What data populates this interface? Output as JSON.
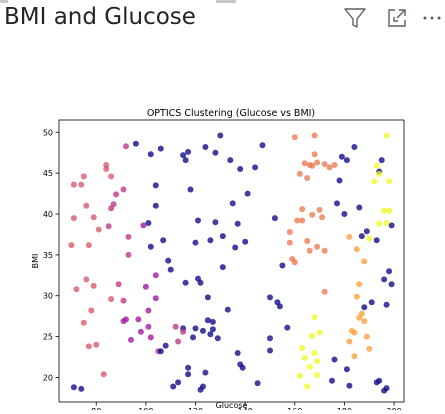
{
  "visual": {
    "title": "BMI and Glucose",
    "filter_icon": "filter-icon",
    "focus_icon": "focus-mode-icon",
    "more_icon": "more-options-icon"
  },
  "colors": {
    "title_text": "#252423",
    "icon_stroke": "#605e5c",
    "axes": "#000000",
    "cluster_palette": [
      "#0d0887",
      "#46039f",
      "#7201a8",
      "#9c179e",
      "#bd3786",
      "#d8576b",
      "#ed7953",
      "#fb9f3a",
      "#fdca26",
      "#f0f921"
    ]
  },
  "chart_data": {
    "type": "scatter",
    "title": "OPTICS Clustering (Glucose vs BMI)",
    "xlabel": "Glucose",
    "ylabel": "BMI",
    "xlim": [
      65,
      204
    ],
    "ylim": [
      17,
      51.5
    ],
    "xticks": [
      "80",
      "100",
      "120",
      "140",
      "160",
      "180",
      "200"
    ],
    "xtick_values": [
      80,
      100,
      120,
      140,
      160,
      180,
      200
    ],
    "yticks": [
      "20",
      "25",
      "30",
      "35",
      "40",
      "45",
      "50"
    ],
    "ytick_values": [
      20,
      25,
      30,
      35,
      40,
      45,
      50
    ],
    "grid": false,
    "colormap": "plasma",
    "points": [
      [
        71,
        18.8,
        0.01
      ],
      [
        74,
        18.6,
        0.01
      ],
      [
        70,
        36.2,
        0.52
      ],
      [
        71,
        39.5,
        0.52
      ],
      [
        71,
        43.6,
        0.52
      ],
      [
        72,
        30.8,
        0.55
      ],
      [
        74,
        43.6,
        0.52
      ],
      [
        75,
        44.6,
        0.5
      ],
      [
        75,
        26.7,
        0.55
      ],
      [
        76,
        32.0,
        0.55
      ],
      [
        76,
        41.0,
        0.52
      ],
      [
        77,
        36.2,
        0.52
      ],
      [
        77,
        23.8,
        0.55
      ],
      [
        78,
        28.2,
        0.55
      ],
      [
        79,
        31.2,
        0.55
      ],
      [
        79,
        39.6,
        0.52
      ],
      [
        80,
        24.0,
        0.55
      ],
      [
        81,
        38.1,
        0.5
      ],
      [
        83,
        20.4,
        0.55
      ],
      [
        84,
        45.5,
        0.5
      ],
      [
        84,
        46.0,
        0.5
      ],
      [
        85,
        38.5,
        0.45
      ],
      [
        86,
        44.6,
        0.5
      ],
      [
        86,
        29.6,
        0.5
      ],
      [
        86,
        40.7,
        0.45
      ],
      [
        87,
        41.2,
        0.45
      ],
      [
        88,
        42.4,
        0.45
      ],
      [
        89,
        31.4,
        0.45
      ],
      [
        91,
        43.0,
        0.4
      ],
      [
        91,
        26.9,
        0.38
      ],
      [
        91,
        29.4,
        0.4
      ],
      [
        92,
        27.1,
        0.38
      ],
      [
        93,
        35.0,
        0.4
      ],
      [
        93,
        37.2,
        0.4
      ],
      [
        94,
        24.6,
        0.35
      ],
      [
        97,
        27.1,
        0.35
      ],
      [
        98,
        25.6,
        0.38
      ],
      [
        99,
        38.6,
        0.35
      ],
      [
        100,
        31.1,
        0.35
      ],
      [
        101,
        26.2,
        0.38
      ],
      [
        101,
        28.2,
        0.38
      ],
      [
        102,
        24.9,
        0.38
      ],
      [
        104,
        29.7,
        0.38
      ],
      [
        105,
        23.2,
        0.4
      ],
      [
        104,
        32.5,
        0.38
      ],
      [
        92,
        48.3,
        0.45
      ],
      [
        96,
        48.6,
        0.05
      ],
      [
        101,
        38.9,
        0.05
      ],
      [
        102,
        47.3,
        0.05
      ],
      [
        102,
        36.0,
        0.05
      ],
      [
        104,
        43.5,
        0.05
      ],
      [
        104,
        41.0,
        0.05
      ],
      [
        106,
        48.0,
        0.05
      ],
      [
        106,
        23.2,
        0.05
      ],
      [
        107,
        36.8,
        0.05
      ],
      [
        108,
        23.9,
        0.05
      ],
      [
        109,
        34.3,
        0.05
      ],
      [
        110,
        33.2,
        0.05
      ],
      [
        111,
        18.9,
        0.05
      ],
      [
        113,
        19.4,
        0.05
      ],
      [
        115,
        47.2,
        0.05
      ],
      [
        115,
        26.0,
        0.05
      ],
      [
        116,
        46.6,
        0.05
      ],
      [
        116,
        31.6,
        0.05
      ],
      [
        117,
        47.6,
        0.05
      ],
      [
        117,
        21.2,
        0.05
      ],
      [
        117,
        20.4,
        0.05
      ],
      [
        118,
        43.0,
        0.05
      ],
      [
        119,
        24.9,
        0.05
      ],
      [
        120,
        26.0,
        0.05
      ],
      [
        120,
        36.5,
        0.05
      ],
      [
        121,
        32.1,
        0.05
      ],
      [
        121,
        39.2,
        0.05
      ],
      [
        122,
        31.6,
        0.05
      ],
      [
        122,
        18.5,
        0.05
      ],
      [
        123,
        25.7,
        0.05
      ],
      [
        123,
        18.9,
        0.05
      ],
      [
        124,
        48.2,
        0.05
      ],
      [
        124,
        20.6,
        0.05
      ],
      [
        125,
        27.0,
        0.05
      ],
      [
        125,
        29.8,
        0.05
      ],
      [
        126,
        25.3,
        0.05
      ],
      [
        126,
        36.8,
        0.05
      ],
      [
        127,
        26.8,
        0.05
      ],
      [
        127,
        25.9,
        0.05
      ],
      [
        128,
        39.0,
        0.05
      ],
      [
        128,
        47.5,
        0.05
      ],
      [
        129,
        24.8,
        0.05
      ],
      [
        130,
        49.6,
        0.05
      ],
      [
        131,
        33.5,
        0.05
      ],
      [
        131,
        37.3,
        0.05
      ],
      [
        133,
        28.3,
        0.05
      ],
      [
        134,
        46.6,
        0.05
      ],
      [
        135,
        41.3,
        0.05
      ],
      [
        136,
        35.9,
        0.05
      ],
      [
        137,
        23.0,
        0.05
      ],
      [
        137,
        38.8,
        0.05
      ],
      [
        138,
        21.6,
        0.05
      ],
      [
        138,
        45.5,
        0.05
      ],
      [
        139,
        21.2,
        0.05
      ],
      [
        140,
        36.6,
        0.05
      ],
      [
        141,
        42.5,
        0.05
      ],
      [
        144,
        45.7,
        0.05
      ],
      [
        145,
        19.3,
        0.05
      ],
      [
        147,
        48.4,
        0.05
      ],
      [
        150,
        23.3,
        0.05
      ],
      [
        150,
        29.8,
        0.05
      ],
      [
        150,
        24.8,
        0.05
      ],
      [
        152,
        39.5,
        0.05
      ],
      [
        153,
        29.2,
        0.05
      ],
      [
        154,
        28.7,
        0.05
      ],
      [
        155,
        33.7,
        0.05
      ],
      [
        157,
        26.1,
        0.05
      ],
      [
        112,
        26.2,
        0.4
      ],
      [
        113,
        24.4,
        0.4
      ],
      [
        115,
        25.6,
        0.4
      ],
      [
        158,
        37.8,
        0.7
      ],
      [
        158,
        36.5,
        0.7
      ],
      [
        159,
        34.5,
        0.7
      ],
      [
        160,
        34.1,
        0.7
      ],
      [
        160,
        49.4,
        0.72
      ],
      [
        161,
        39.2,
        0.7
      ],
      [
        162,
        44.9,
        0.72
      ],
      [
        163,
        39.2,
        0.7
      ],
      [
        163,
        40.6,
        0.7
      ],
      [
        164,
        46.2,
        0.72
      ],
      [
        165,
        44.4,
        0.72
      ],
      [
        165,
        36.7,
        0.7
      ],
      [
        166,
        35.5,
        0.72
      ],
      [
        166,
        46.0,
        0.72
      ],
      [
        167,
        39.9,
        0.72
      ],
      [
        167,
        45.9,
        0.72
      ],
      [
        168,
        49.6,
        0.72
      ],
      [
        168,
        47.3,
        0.72
      ],
      [
        169,
        46.3,
        0.72
      ],
      [
        169,
        36.0,
        0.72
      ],
      [
        170,
        40.5,
        0.72
      ],
      [
        171,
        39.6,
        0.72
      ],
      [
        172,
        35.5,
        0.72
      ],
      [
        172,
        46.1,
        0.72
      ],
      [
        172,
        30.5,
        0.72
      ],
      [
        174,
        45.7,
        0.72
      ],
      [
        176,
        46.0,
        0.72
      ],
      [
        182,
        37.2,
        0.8
      ],
      [
        185,
        35.7,
        0.8
      ],
      [
        185,
        29.9,
        0.8
      ],
      [
        186,
        31.4,
        0.8
      ],
      [
        186,
        27.3,
        0.8
      ],
      [
        187,
        27.8,
        0.8
      ],
      [
        188,
        26.9,
        0.8
      ],
      [
        188,
        34.2,
        0.8
      ],
      [
        189,
        25.0,
        0.8
      ],
      [
        190,
        23.5,
        0.8
      ],
      [
        182,
        24.4,
        0.8
      ],
      [
        183,
        25.7,
        0.8
      ],
      [
        184,
        22.6,
        0.8
      ],
      [
        184,
        25.5,
        0.8
      ],
      [
        162,
        20.2,
        0.98
      ],
      [
        163,
        23.6,
        0.98
      ],
      [
        164,
        22.4,
        0.98
      ],
      [
        165,
        18.9,
        0.98
      ],
      [
        166,
        21.3,
        0.98
      ],
      [
        167,
        25.1,
        0.98
      ],
      [
        168,
        27.4,
        0.98
      ],
      [
        168,
        23.0,
        0.98
      ],
      [
        169,
        20.3,
        0.98
      ],
      [
        169,
        22.0,
        0.98
      ],
      [
        170,
        25.5,
        0.98
      ],
      [
        181,
        46.6,
        0.05
      ],
      [
        175,
        19.6,
        0.05
      ],
      [
        176,
        22.2,
        0.05
      ],
      [
        177,
        41.3,
        0.05
      ],
      [
        178,
        44.1,
        0.05
      ],
      [
        179,
        47.0,
        0.05
      ],
      [
        180,
        40.0,
        0.05
      ],
      [
        181,
        21.0,
        0.05
      ],
      [
        182,
        19.0,
        0.05
      ],
      [
        184,
        48.2,
        0.05
      ],
      [
        186,
        40.8,
        0.05
      ],
      [
        187,
        37.3,
        0.05
      ],
      [
        188,
        28.6,
        0.05
      ],
      [
        189,
        37.9,
        0.05
      ],
      [
        191,
        29.2,
        0.05
      ],
      [
        193,
        36.8,
        0.05
      ],
      [
        194,
        45.2,
        0.05
      ],
      [
        195,
        46.6,
        0.05
      ],
      [
        196,
        32.0,
        0.05
      ],
      [
        197,
        28.9,
        0.05
      ],
      [
        198,
        33.0,
        0.05
      ],
      [
        199,
        31.4,
        0.05
      ],
      [
        194,
        19.6,
        0.05
      ],
      [
        196,
        18.4,
        0.05
      ],
      [
        197,
        18.7,
        0.05
      ],
      [
        199,
        38.6,
        0.05
      ],
      [
        193,
        19.4,
        0.05
      ],
      [
        192,
        44.0,
        0.95
      ],
      [
        193,
        45.9,
        0.95
      ],
      [
        194,
        38.8,
        0.95
      ],
      [
        196,
        40.4,
        0.95
      ],
      [
        197,
        49.6,
        0.95
      ],
      [
        197,
        38.9,
        0.95
      ],
      [
        198,
        40.4,
        0.95
      ],
      [
        198,
        44.0,
        0.95
      ],
      [
        194,
        44.9,
        0.95
      ],
      [
        190,
        37.0,
        0.95
      ]
    ]
  }
}
